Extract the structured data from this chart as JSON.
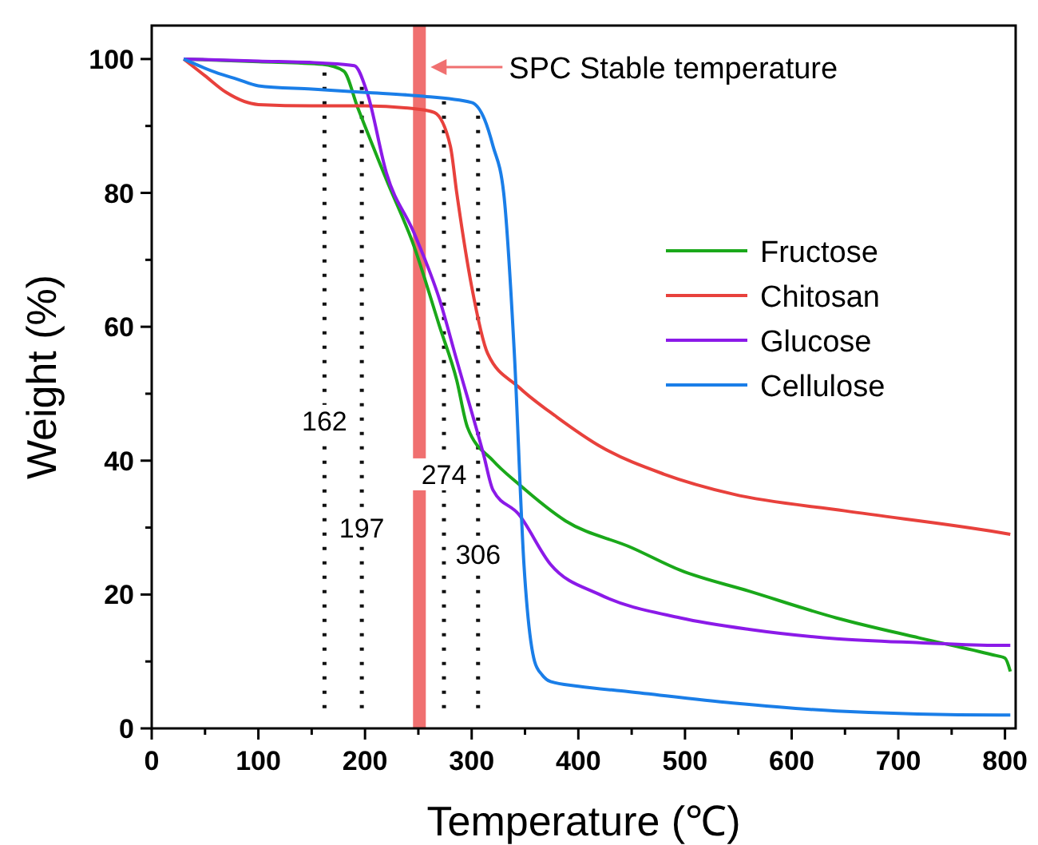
{
  "chart_data": {
    "type": "line",
    "xlabel": "Temperature (℃)",
    "ylabel": "Weight (%)",
    "xlim": [
      0,
      810
    ],
    "ylim": [
      0,
      105
    ],
    "xticks": [
      0,
      {
        "value": 50,
        "label": null
      },
      100,
      {
        "value": 150,
        "label": null
      },
      200,
      {
        "value": 250,
        "label": null
      },
      300,
      {
        "value": 350,
        "label": null
      },
      400,
      {
        "value": 450,
        "label": null
      },
      500,
      {
        "value": 550,
        "label": null
      },
      600,
      {
        "value": 650,
        "label": null
      },
      700,
      {
        "value": 750,
        "label": null
      },
      800
    ],
    "yticks": [
      0,
      {
        "value": 10,
        "label": null
      },
      20,
      {
        "value": 30,
        "label": null
      },
      40,
      {
        "value": 50,
        "label": null
      },
      60,
      {
        "value": 70,
        "label": null
      },
      80,
      {
        "value": 90,
        "label": null
      },
      100
    ],
    "grid": false,
    "legend": "right",
    "line_style": "solid",
    "series": [
      {
        "name": "Fructose",
        "color": "#1aa81a",
        "x": [
          30,
          100,
          160,
          180,
          193,
          220,
          246,
          270,
          286,
          296,
          320,
          344,
          388,
          450,
          496,
          560,
          642,
          720,
          788,
          800,
          805
        ],
        "values": [
          100,
          99.6,
          99.2,
          98.2,
          92.8,
          82,
          72,
          60,
          52,
          45,
          40,
          36.5,
          31,
          27,
          23.6,
          20.5,
          16.5,
          13.5,
          11,
          10.5,
          8.5
        ]
      },
      {
        "name": "Chitosan",
        "color": "#e8413c",
        "x": [
          30,
          50,
          70,
          100,
          150,
          200,
          250,
          265,
          280,
          286,
          300,
          315,
          344,
          380,
          422,
          480,
          545,
          650,
          794,
          805
        ],
        "values": [
          100,
          97.5,
          95,
          93.2,
          93,
          93,
          92.5,
          92,
          87,
          80,
          66,
          56,
          51,
          46.5,
          42,
          38,
          35,
          32.5,
          29.3,
          29
        ]
      },
      {
        "name": "Glucose",
        "color": "#8b1ae8",
        "x": [
          30,
          100,
          160,
          190,
          202,
          220,
          246,
          270,
          286,
          311,
          320,
          344,
          374,
          420,
          496,
          560,
          642,
          720,
          794,
          805
        ],
        "values": [
          100,
          99.7,
          99.4,
          99,
          95,
          83,
          74,
          64,
          55,
          41,
          35.6,
          32,
          24.5,
          20,
          16.5,
          14.8,
          13.4,
          12.8,
          12.4,
          12.4
        ]
      },
      {
        "name": "Cellulose",
        "color": "#1a7ee8",
        "x": [
          30,
          60,
          80,
          100,
          150,
          200,
          250,
          300,
          312,
          320,
          330,
          340,
          349,
          359,
          366,
          374,
          400,
          447,
          545,
          642,
          794,
          805
        ],
        "values": [
          100,
          98,
          97,
          96,
          95.5,
          95,
          94.5,
          93.5,
          91,
          87,
          80,
          56,
          24.5,
          10,
          8,
          7,
          6.3,
          5.5,
          3.8,
          2.6,
          2,
          2
        ]
      }
    ],
    "bands": [
      {
        "axis": "x",
        "from": 245,
        "to": 257,
        "label": "SPC Stable temperature",
        "color": "#f07070"
      }
    ],
    "ref_lines": [
      {
        "axis": "x",
        "value": 162,
        "label": "162",
        "line_style": "dotted"
      },
      {
        "axis": "x",
        "value": 197,
        "label": "197",
        "line_style": "dotted"
      },
      {
        "axis": "x",
        "value": 274,
        "label": "274",
        "line_style": "dotted"
      },
      {
        "axis": "x",
        "value": 306,
        "label": "306",
        "line_style": "dotted"
      }
    ]
  }
}
